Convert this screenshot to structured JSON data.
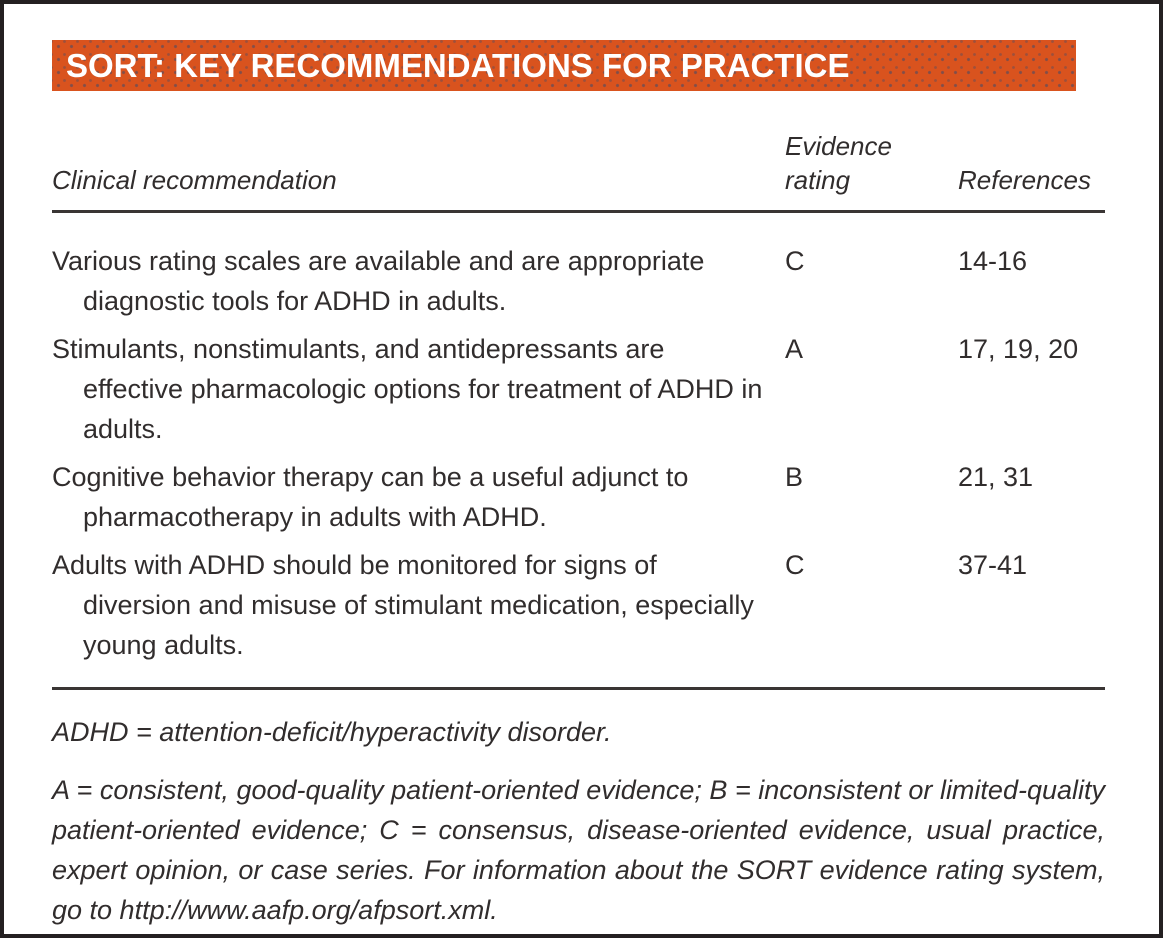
{
  "banner": {
    "title": "SORT: KEY RECOMMENDATIONS FOR PRACTICE"
  },
  "table": {
    "headers": {
      "clinical": "Clinical recommendation",
      "evidence": "Evidence rating",
      "references": "References"
    },
    "rows": [
      {
        "recommendation": "Various rating scales are available and are appropriate diagnostic tools for ADHD in adults.",
        "evidence": "C",
        "references": "14-16"
      },
      {
        "recommendation": "Stimulants, nonstimulants, and antidepressants are effective pharmacologic options for treatment of ADHD in adults.",
        "evidence": "A",
        "references": "17, 19, 20"
      },
      {
        "recommendation": "Cognitive behavior therapy can be a useful adjunct to pharmacotherapy in adults with ADHD.",
        "evidence": "B",
        "references": "21, 31"
      },
      {
        "recommendation": "Adults with ADHD should be monitored for signs of diversion and misuse of stimulant medication, especially young adults.",
        "evidence": "C",
        "references": "37-41"
      }
    ]
  },
  "footnotes": {
    "abbreviation": "ADHD = attention-deficit/hyperactivity disorder.",
    "evidence_legend": "A = consistent, good-quality patient-oriented evidence; B = inconsistent or limited-quality patient-oriented evidence; C = consensus, disease-oriented evidence, usual practice, expert opinion, or case series. For information about the SORT evidence rating system, go to http://www.aafp.org/afpsort.xml."
  },
  "colors": {
    "banner_bg": "#d9531e",
    "banner_text": "#ffffff",
    "body_text": "#312d2d",
    "rule": "#3a3534",
    "page_border": "#242021"
  }
}
